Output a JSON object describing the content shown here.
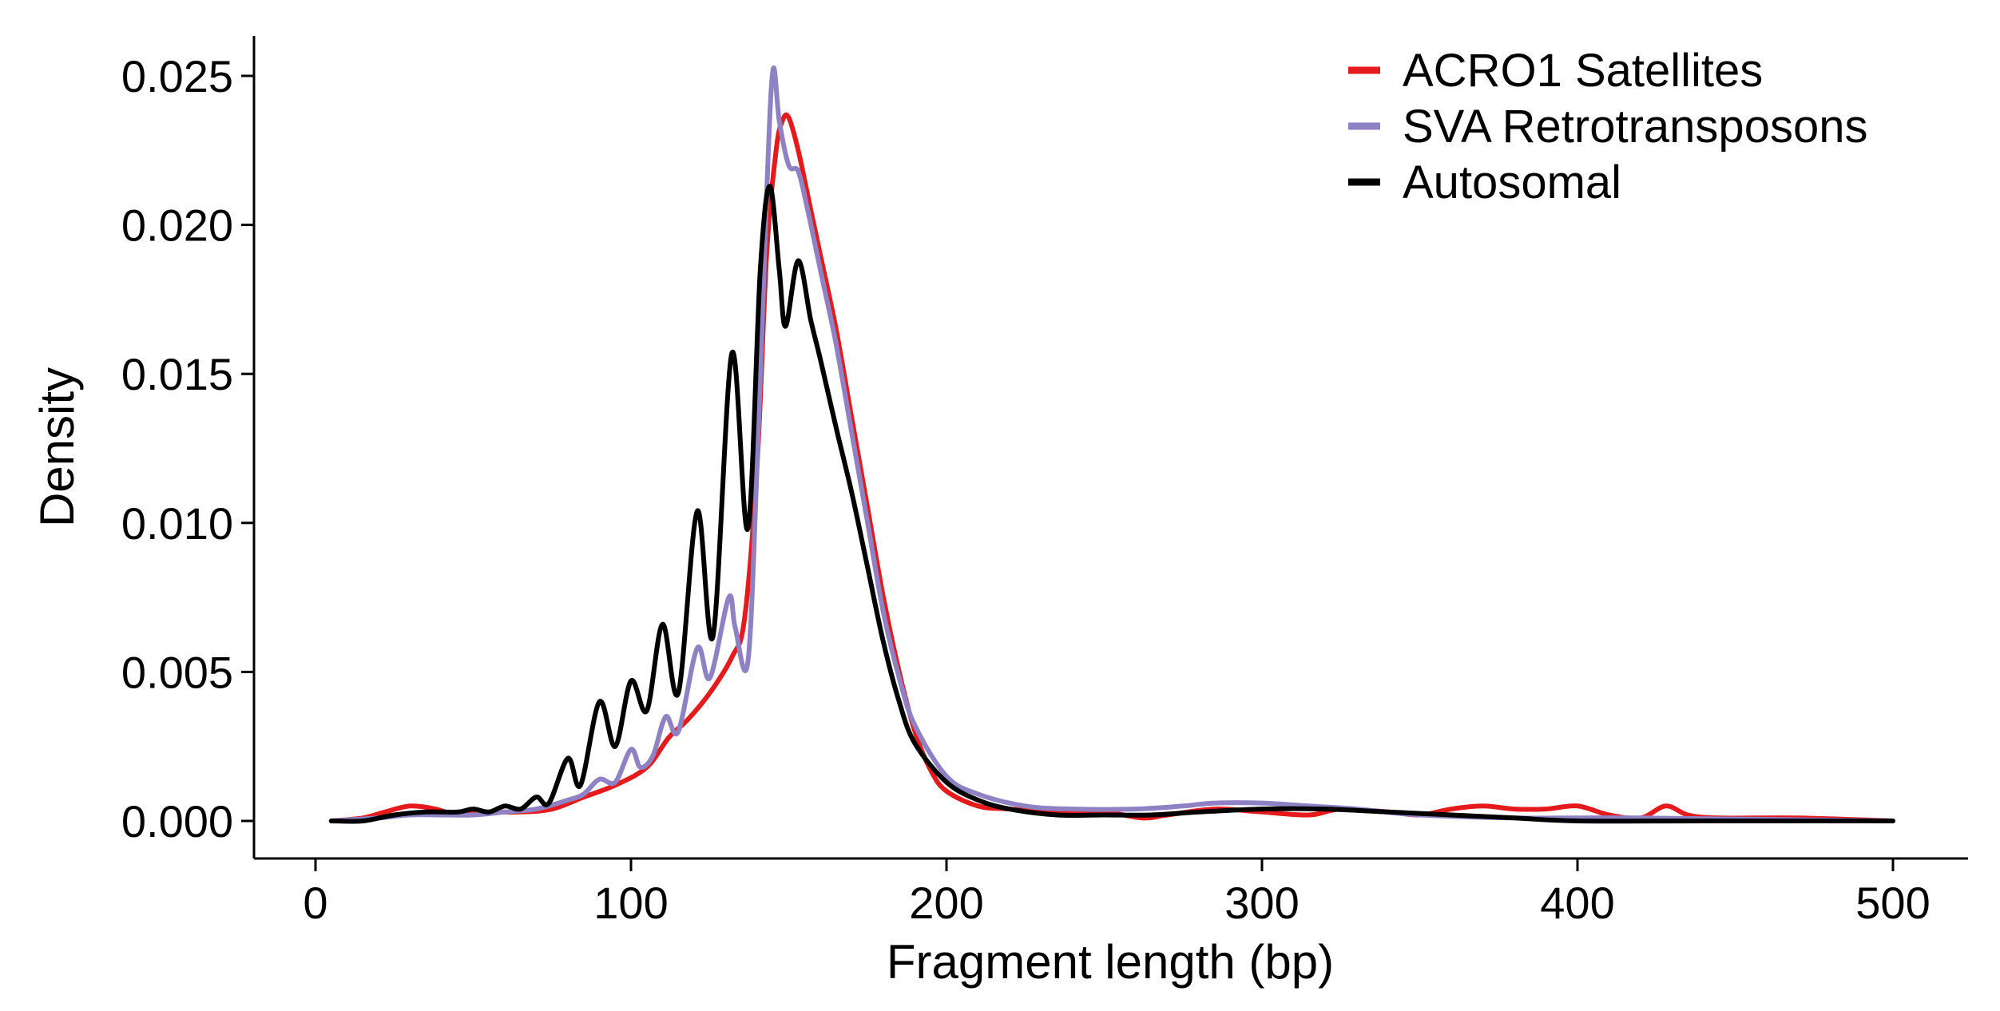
{
  "chart_data": {
    "type": "line",
    "title": "",
    "xlabel": "Fragment length (bp)",
    "ylabel": "Density",
    "xlim": [
      0,
      500
    ],
    "ylim": [
      0,
      0.025
    ],
    "x_ticks": [
      0,
      100,
      200,
      300,
      400,
      500
    ],
    "x_tick_labels": [
      "0",
      "100",
      "200",
      "300",
      "400",
      "500"
    ],
    "y_ticks": [
      0,
      0.005,
      0.01,
      0.015,
      0.02,
      0.025
    ],
    "y_tick_labels": [
      "0.000",
      "0.005",
      "0.010",
      "0.015",
      "0.020",
      "0.025"
    ],
    "grid": false,
    "legend_position": "top-right",
    "series": [
      {
        "name": "ACRO1 Satellites",
        "color": "#e41a1c",
        "points": [
          [
            5,
            0
          ],
          [
            15,
            0.0001
          ],
          [
            22,
            0.0003
          ],
          [
            30,
            0.0005
          ],
          [
            38,
            0.0004
          ],
          [
            45,
            0.0002
          ],
          [
            55,
            0.0003
          ],
          [
            65,
            0.0003
          ],
          [
            75,
            0.0004
          ],
          [
            85,
            0.0008
          ],
          [
            95,
            0.0012
          ],
          [
            105,
            0.0018
          ],
          [
            112,
            0.0028
          ],
          [
            118,
            0.0034
          ],
          [
            125,
            0.0043
          ],
          [
            132,
            0.0055
          ],
          [
            136,
            0.0068
          ],
          [
            140,
            0.012
          ],
          [
            143,
            0.019
          ],
          [
            146,
            0.0225
          ],
          [
            148,
            0.0235
          ],
          [
            150,
            0.0236
          ],
          [
            153,
            0.0225
          ],
          [
            157,
            0.0205
          ],
          [
            160,
            0.019
          ],
          [
            165,
            0.0165
          ],
          [
            170,
            0.0135
          ],
          [
            175,
            0.0105
          ],
          [
            180,
            0.0075
          ],
          [
            185,
            0.005
          ],
          [
            190,
            0.003
          ],
          [
            195,
            0.0017
          ],
          [
            200,
            0.001
          ],
          [
            210,
            0.0005
          ],
          [
            220,
            0.0004
          ],
          [
            235,
            0.0003
          ],
          [
            250,
            0.0003
          ],
          [
            262,
            0.0001
          ],
          [
            270,
            0.0002
          ],
          [
            285,
            0.0004
          ],
          [
            300,
            0.0003
          ],
          [
            315,
            0.0002
          ],
          [
            325,
            0.0004
          ],
          [
            340,
            0.0003
          ],
          [
            350,
            0.0002
          ],
          [
            360,
            0.0004
          ],
          [
            370,
            0.0005
          ],
          [
            380,
            0.0004
          ],
          [
            390,
            0.0004
          ],
          [
            400,
            0.0005
          ],
          [
            410,
            0.0002
          ],
          [
            420,
            0.0001
          ],
          [
            428,
            0.0005
          ],
          [
            435,
            0.0002
          ],
          [
            445,
            0.0001
          ],
          [
            470,
            0.0001
          ],
          [
            500,
            0
          ]
        ]
      },
      {
        "name": "SVA Retrotransposons",
        "color": "#8f82c4",
        "points": [
          [
            5,
            0
          ],
          [
            20,
            0.0001
          ],
          [
            30,
            0.0002
          ],
          [
            40,
            0.0002
          ],
          [
            50,
            0.0002
          ],
          [
            60,
            0.0003
          ],
          [
            70,
            0.0004
          ],
          [
            80,
            0.0007
          ],
          [
            85,
            0.0009
          ],
          [
            90,
            0.0014
          ],
          [
            95,
            0.0013
          ],
          [
            100,
            0.0024
          ],
          [
            103,
            0.0018
          ],
          [
            107,
            0.0022
          ],
          [
            111,
            0.0035
          ],
          [
            115,
            0.003
          ],
          [
            121,
            0.0058
          ],
          [
            125,
            0.0048
          ],
          [
            131,
            0.0075
          ],
          [
            133,
            0.0065
          ],
          [
            137,
            0.0053
          ],
          [
            140,
            0.012
          ],
          [
            143,
            0.021
          ],
          [
            145,
            0.0252
          ],
          [
            147,
            0.0235
          ],
          [
            150,
            0.022
          ],
          [
            153,
            0.0218
          ],
          [
            156,
            0.0205
          ],
          [
            160,
            0.0185
          ],
          [
            165,
            0.016
          ],
          [
            170,
            0.013
          ],
          [
            175,
            0.01
          ],
          [
            180,
            0.007
          ],
          [
            185,
            0.0048
          ],
          [
            190,
            0.0032
          ],
          [
            200,
            0.0015
          ],
          [
            210,
            0.0009
          ],
          [
            225,
            0.0005
          ],
          [
            240,
            0.0004
          ],
          [
            260,
            0.0004
          ],
          [
            275,
            0.0005
          ],
          [
            285,
            0.0006
          ],
          [
            300,
            0.0006
          ],
          [
            315,
            0.0005
          ],
          [
            330,
            0.0004
          ],
          [
            350,
            0.0002
          ],
          [
            380,
            0.0001
          ],
          [
            420,
            0.0001
          ],
          [
            500,
            0
          ]
        ]
      },
      {
        "name": "Autosomal",
        "color": "#000000",
        "points": [
          [
            5,
            0
          ],
          [
            15,
            0
          ],
          [
            25,
            0.0002
          ],
          [
            35,
            0.0003
          ],
          [
            45,
            0.0003
          ],
          [
            50,
            0.0004
          ],
          [
            55,
            0.0003
          ],
          [
            60,
            0.0005
          ],
          [
            65,
            0.0004
          ],
          [
            70,
            0.0008
          ],
          [
            74,
            0.0006
          ],
          [
            80,
            0.0021
          ],
          [
            84,
            0.0012
          ],
          [
            90,
            0.004
          ],
          [
            95,
            0.0025
          ],
          [
            100,
            0.0047
          ],
          [
            105,
            0.0037
          ],
          [
            110,
            0.0066
          ],
          [
            115,
            0.0043
          ],
          [
            121,
            0.0104
          ],
          [
            126,
            0.0062
          ],
          [
            132,
            0.0157
          ],
          [
            137,
            0.0098
          ],
          [
            141,
            0.0185
          ],
          [
            144,
            0.0213
          ],
          [
            147,
            0.0185
          ],
          [
            149,
            0.0166
          ],
          [
            153,
            0.0188
          ],
          [
            157,
            0.0168
          ],
          [
            160,
            0.0155
          ],
          [
            165,
            0.0132
          ],
          [
            170,
            0.011
          ],
          [
            175,
            0.0085
          ],
          [
            180,
            0.006
          ],
          [
            185,
            0.004
          ],
          [
            190,
            0.0026
          ],
          [
            200,
            0.0013
          ],
          [
            210,
            0.0007
          ],
          [
            220,
            0.0004
          ],
          [
            235,
            0.0002
          ],
          [
            250,
            0.0002
          ],
          [
            265,
            0.0002
          ],
          [
            280,
            0.0003
          ],
          [
            300,
            0.0004
          ],
          [
            320,
            0.0004
          ],
          [
            340,
            0.0003
          ],
          [
            360,
            0.0002
          ],
          [
            380,
            0.0001
          ],
          [
            400,
            0
          ],
          [
            440,
            0
          ],
          [
            500,
            0
          ]
        ]
      }
    ]
  }
}
